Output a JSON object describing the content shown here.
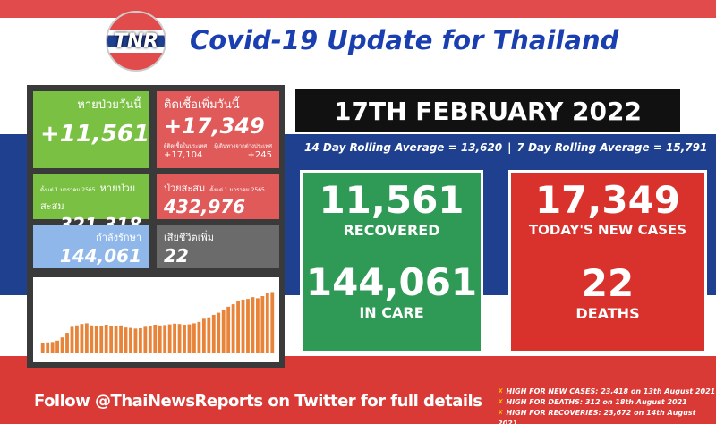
{
  "header": {
    "logo": "TNR",
    "title": "Covid-19 Update for Thailand"
  },
  "tiles": {
    "recovered_today": {
      "label": "หายป่วยวันนี้",
      "value": "+11,561"
    },
    "new_cases_today": {
      "label": "ติดเชื้อเพิ่มวันนี้",
      "value": "+17,349",
      "domestic_label": "ผู้ติดเชื้อในประเทศ",
      "domestic": "+17,104",
      "imported_label": "ผู้เดินทางจากต่างประเทศ",
      "imported": "+245"
    },
    "recovered_total": {
      "note": "ตั้งแต่ 1 มกราคม 2565",
      "label": "หายป่วยสะสม",
      "value": "321,318"
    },
    "cases_total": {
      "label": "ป่วยสะสม",
      "note": "ตั้งแต่ 1 มกราคม 2565",
      "value": "432,976"
    },
    "in_care": {
      "label": "กำลังรักษา",
      "value": "144,061"
    },
    "deaths_today": {
      "label": "เสียชีวิตเพิ่ม",
      "value": "22"
    }
  },
  "daily_chart": {
    "type": "bar",
    "color": "#e8833a",
    "ylim": [
      0,
      20000
    ],
    "values": [
      3000,
      3100,
      3200,
      3600,
      4500,
      5800,
      7500,
      7900,
      8300,
      8500,
      7900,
      7700,
      7800,
      8100,
      7700,
      7600,
      7900,
      7300,
      7200,
      7000,
      7100,
      7500,
      7800,
      8100,
      7900,
      8000,
      8200,
      8400,
      8300,
      8100,
      8200,
      8500,
      8900,
      9800,
      10200,
      10900,
      11500,
      12300,
      13200,
      13900,
      14700,
      15200,
      15400,
      15900,
      15600,
      16200,
      17000,
      17349
    ]
  },
  "banner": {
    "date": "17TH FEBRUARY 2022",
    "avg14": "14 Day Rolling Average = 13,620",
    "separator": "|",
    "avg7": "7 Day Rolling Average = 15,791"
  },
  "boxes": {
    "green": {
      "top_value": "11,561",
      "top_label": "RECOVERED",
      "bottom_value": "144,061",
      "bottom_label": "IN CARE"
    },
    "red": {
      "top_value": "17,349",
      "top_label": "TODAY'S NEW CASES",
      "bottom_value": "22",
      "bottom_label": "DEATHS"
    }
  },
  "footer": {
    "follow": "Follow @ThaiNewsReports on Twitter for full details",
    "highs": [
      "HIGH FOR NEW CASES: 23,418 on 13th August 2021",
      "HIGH FOR DEATHS: 312 on 18th August 2021",
      "HIGH FOR RECOVERIES: 23,672 on 14th August 2021"
    ]
  }
}
